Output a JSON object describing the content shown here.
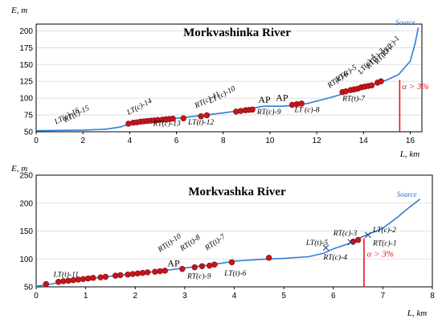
{
  "chart_data": [
    {
      "type": "line",
      "title": "Morkvashinka River",
      "ylabel": "E, m",
      "xlabel": "L, km",
      "xlim": [
        0,
        16.5
      ],
      "ylim": [
        50,
        210
      ],
      "xticks": [
        0,
        2,
        4,
        6,
        8,
        10,
        12,
        14,
        16
      ],
      "yticks": [
        50,
        75,
        100,
        125,
        150,
        175,
        200
      ],
      "grid": "horizontal",
      "source_label": "Source",
      "source_point": [
        16.35,
        205
      ],
      "series": [
        {
          "values": [
            [
              0,
              51.5
            ],
            [
              2,
              52.5
            ],
            [
              3,
              54
            ],
            [
              3.6,
              57
            ],
            [
              4,
              62
            ],
            [
              5,
              67
            ],
            [
              6,
              70
            ],
            [
              7,
              74
            ],
            [
              8,
              78
            ],
            [
              9,
              83
            ],
            [
              9.4,
              86
            ],
            [
              9.7,
              88
            ],
            [
              10.5,
              88
            ],
            [
              11,
              89
            ],
            [
              11.6,
              92
            ],
            [
              12.5,
              100
            ],
            [
              13,
              105
            ],
            [
              13.5,
              112
            ],
            [
              14,
              117
            ],
            [
              14.5,
              121
            ],
            [
              15,
              127
            ],
            [
              15.5,
              135
            ],
            [
              16,
              155
            ],
            [
              16.2,
              180
            ],
            [
              16.35,
              205
            ]
          ]
        }
      ],
      "points": [
        [
          3.95,
          62
        ],
        [
          4.15,
          63.5
        ],
        [
          4.3,
          64
        ],
        [
          4.45,
          65
        ],
        [
          4.6,
          65.5
        ],
        [
          4.75,
          66
        ],
        [
          4.9,
          66.5
        ],
        [
          5.05,
          67
        ],
        [
          5.2,
          67.5
        ],
        [
          5.4,
          68
        ],
        [
          5.55,
          68.5
        ],
        [
          5.7,
          69
        ],
        [
          5.85,
          69.5
        ],
        [
          6.3,
          70
        ],
        [
          7.05,
          73
        ],
        [
          7.3,
          74.5
        ],
        [
          8.55,
          80
        ],
        [
          8.75,
          81
        ],
        [
          8.95,
          82
        ],
        [
          9.1,
          82.5
        ],
        [
          9.25,
          83
        ],
        [
          10.95,
          90
        ],
        [
          11.15,
          91
        ],
        [
          11.35,
          92
        ],
        [
          13.1,
          109
        ],
        [
          13.25,
          110
        ],
        [
          13.45,
          112
        ],
        [
          13.6,
          113
        ],
        [
          13.75,
          114
        ],
        [
          13.9,
          116
        ],
        [
          14.05,
          117
        ],
        [
          14.2,
          118
        ],
        [
          14.35,
          119
        ],
        [
          14.6,
          123
        ],
        [
          14.75,
          125
        ]
      ],
      "crosses": [],
      "labels": [
        {
          "text": "RT(c)-15",
          "x": 1.25,
          "y": 64,
          "rot": -28
        },
        {
          "text": "LT(c)-16",
          "x": 0.85,
          "y": 61,
          "rot": -28
        },
        {
          "text": "LT(c)-14",
          "x": 3.95,
          "y": 75,
          "rot": -28
        },
        {
          "text": "RT(c)-13",
          "x": 5.0,
          "y": 59,
          "rot": 0
        },
        {
          "text": "LT(t)-12",
          "x": 6.5,
          "y": 61,
          "rot": 0
        },
        {
          "text": "RT(c)-11",
          "x": 6.85,
          "y": 85,
          "rot": -28
        },
        {
          "text": "LT (c)-10",
          "x": 7.45,
          "y": 92,
          "rot": -28
        },
        {
          "text": "RT(c)-9",
          "x": 9.45,
          "y": 76,
          "rot": 0
        },
        {
          "text": "LT (c)-8",
          "x": 11.05,
          "y": 79,
          "rot": 0
        },
        {
          "text": "RT(t)-7",
          "x": 13.1,
          "y": 96,
          "rot": 0
        },
        {
          "text": "RT(c)-6",
          "x": 12.55,
          "y": 115,
          "rot": -35
        },
        {
          "text": "RT(c)-5",
          "x": 12.9,
          "y": 124,
          "rot": -35
        },
        {
          "text": "LT(c)-4",
          "x": 13.9,
          "y": 135,
          "rot": -50
        },
        {
          "text": "RT(c)-3",
          "x": 14.25,
          "y": 143,
          "rot": -50
        },
        {
          "text": "RT(c)-2",
          "x": 14.6,
          "y": 150,
          "rot": -50
        },
        {
          "text": "RT(c)-1",
          "x": 14.9,
          "y": 162,
          "rot": -50
        }
      ],
      "ap_labels": [
        {
          "text": "AP",
          "x": 9.5,
          "y": 93
        },
        {
          "text": "AP",
          "x": 10.25,
          "y": 96
        }
      ],
      "threshold": {
        "x": 15.55,
        "ymin": 50,
        "ymax": 127,
        "label": "α > 3%",
        "label_x": 15.65,
        "label_y": 113
      }
    },
    {
      "type": "line",
      "title": "Morkvashka River",
      "ylabel": "E, m",
      "xlabel": "L, km",
      "xlim": [
        0,
        8
      ],
      "ylim": [
        50,
        250
      ],
      "xticks": [
        0,
        1,
        2,
        3,
        4,
        5,
        6,
        7,
        8
      ],
      "yticks": [
        50,
        100,
        150,
        200,
        250
      ],
      "grid": "horizontal",
      "source_label": "Source",
      "source_point": [
        7.75,
        207
      ],
      "series": [
        {
          "values": [
            [
              0,
              51
            ],
            [
              0.3,
              55
            ],
            [
              0.5,
              58
            ],
            [
              1,
              64
            ],
            [
              1.5,
              69
            ],
            [
              2,
              74
            ],
            [
              2.5,
              78
            ],
            [
              3,
              84
            ],
            [
              3.5,
              89
            ],
            [
              3.8,
              93
            ],
            [
              4,
              96
            ],
            [
              4.5,
              99
            ],
            [
              5,
              101
            ],
            [
              5.5,
              104
            ],
            [
              5.8,
              110
            ],
            [
              6,
              118
            ],
            [
              6.3,
              127
            ],
            [
              6.6,
              140
            ],
            [
              7,
              155
            ],
            [
              7.3,
              175
            ],
            [
              7.5,
              190
            ],
            [
              7.75,
              207
            ]
          ]
        }
      ],
      "points": [
        [
          0.2,
          55
        ],
        [
          0.45,
          59
        ],
        [
          0.55,
          60
        ],
        [
          0.65,
          61
        ],
        [
          0.75,
          62
        ],
        [
          0.85,
          63
        ],
        [
          0.95,
          64
        ],
        [
          1.05,
          65
        ],
        [
          1.15,
          66
        ],
        [
          1.3,
          67
        ],
        [
          1.4,
          68
        ],
        [
          1.6,
          70
        ],
        [
          1.7,
          71
        ],
        [
          1.85,
          72
        ],
        [
          1.95,
          73
        ],
        [
          2.05,
          74
        ],
        [
          2.15,
          75
        ],
        [
          2.25,
          76
        ],
        [
          2.4,
          77
        ],
        [
          2.5,
          78
        ],
        [
          2.6,
          79
        ],
        [
          2.95,
          82
        ],
        [
          3.2,
          85
        ],
        [
          3.35,
          87
        ],
        [
          3.5,
          88
        ],
        [
          3.6,
          90
        ],
        [
          3.95,
          94
        ],
        [
          4.7,
          102
        ],
        [
          6.4,
          131
        ],
        [
          6.5,
          134
        ]
      ],
      "crosses": [
        [
          5.85,
          120
        ],
        [
          6.35,
          130
        ],
        [
          6.7,
          143
        ]
      ],
      "labels": [
        {
          "text": "LT(t)-11",
          "x": 0.35,
          "y": 68,
          "rot": 0
        },
        {
          "text": "RT(t)-10",
          "x": 2.5,
          "y": 112,
          "rot": -35
        },
        {
          "text": "RT(t)-8",
          "x": 2.95,
          "y": 114,
          "rot": -35
        },
        {
          "text": "RT(t)-7",
          "x": 3.45,
          "y": 115,
          "rot": -35
        },
        {
          "text": "RT(c)-9",
          "x": 3.05,
          "y": 65,
          "rot": 0
        },
        {
          "text": "LT(t)-6",
          "x": 3.8,
          "y": 70,
          "rot": 0
        },
        {
          "text": "LT(t)-5",
          "x": 5.45,
          "y": 125,
          "rot": 0
        },
        {
          "text": "RT(c)-4",
          "x": 5.8,
          "y": 99,
          "rot": 0
        },
        {
          "text": "RT(c)-3",
          "x": 6.0,
          "y": 142,
          "rot": 0
        },
        {
          "text": "LT(c)-2",
          "x": 6.8,
          "y": 148,
          "rot": 0
        },
        {
          "text": "RT(c)-1",
          "x": 6.8,
          "y": 124,
          "rot": 0
        }
      ],
      "ap_labels": [
        {
          "text": "AP",
          "x": 2.65,
          "y": 87
        }
      ],
      "threshold": {
        "x": 6.62,
        "ymin": 50,
        "ymax": 137,
        "label": "α > 3%",
        "label_x": 6.68,
        "label_y": 104
      }
    }
  ]
}
